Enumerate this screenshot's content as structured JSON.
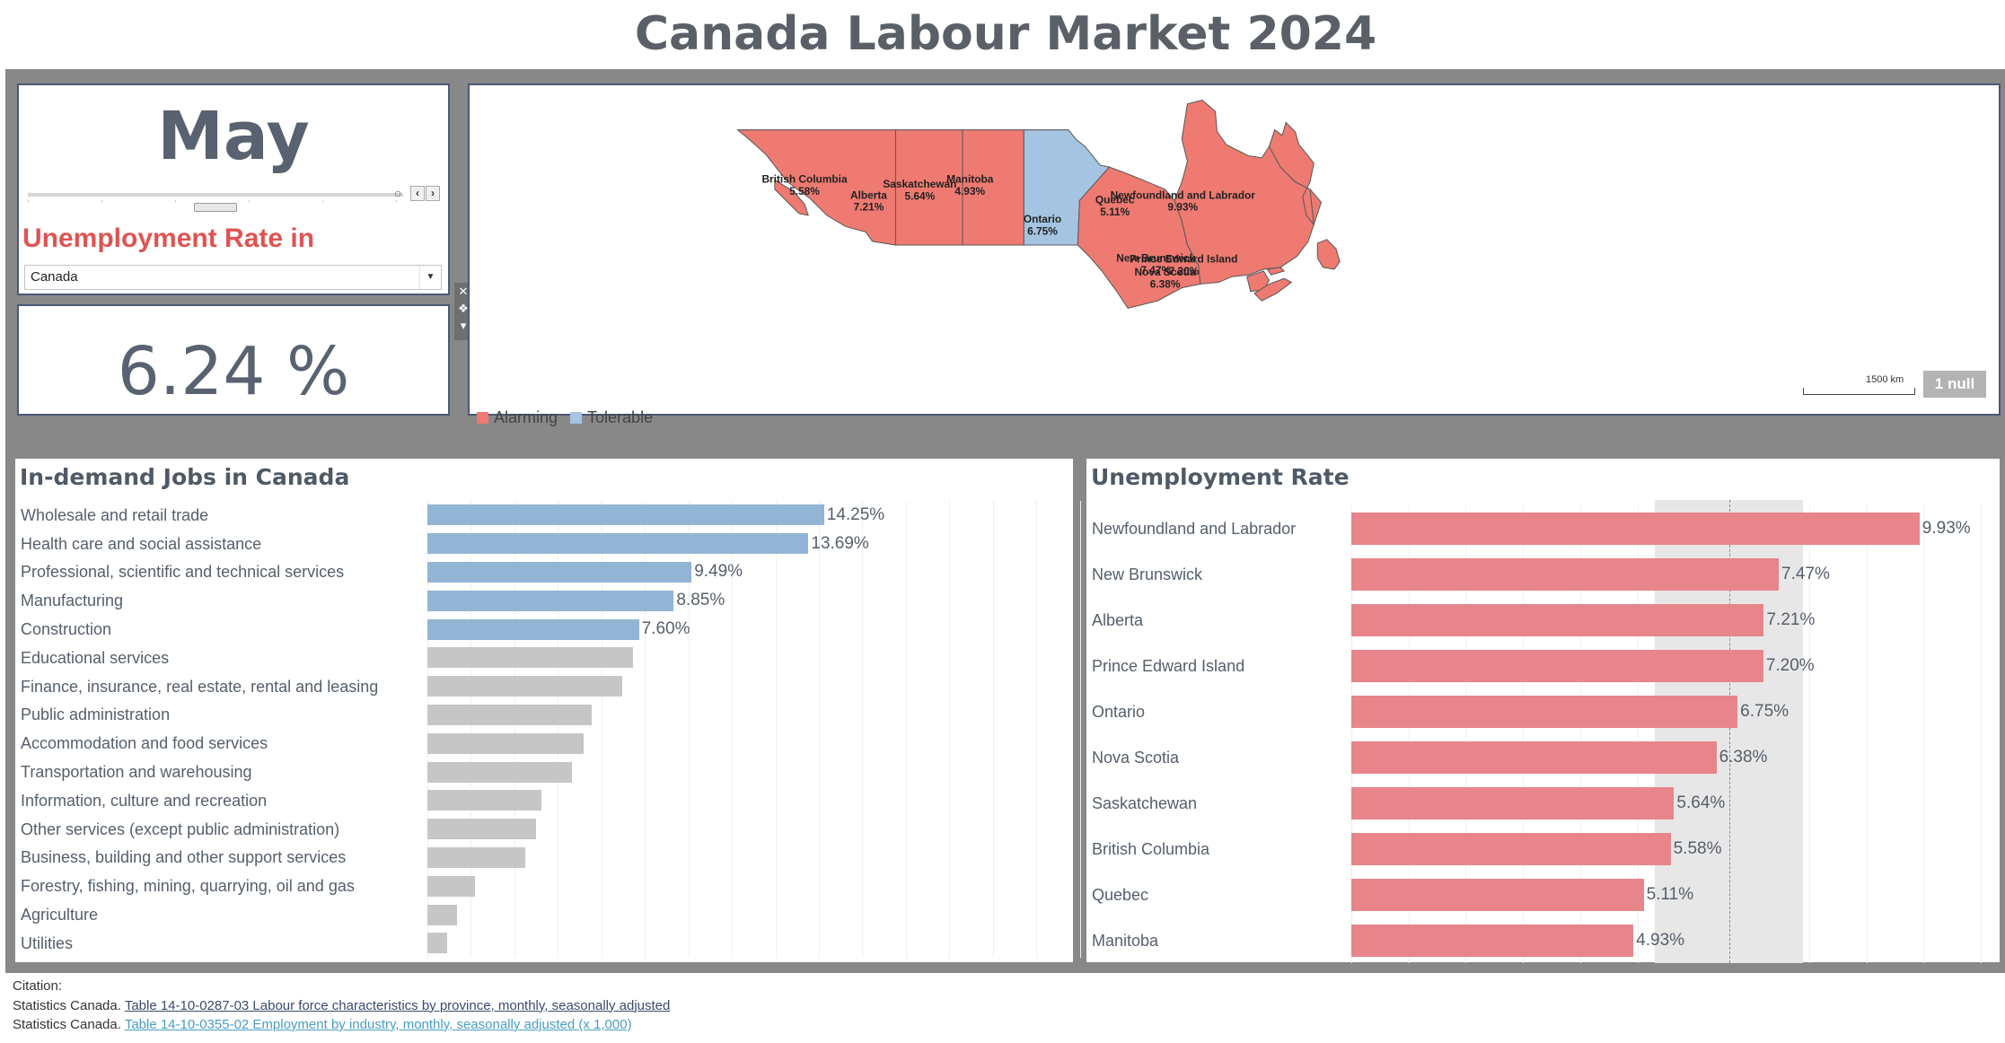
{
  "title": "Canada Labour Market 2024",
  "month": {
    "value": "May",
    "slider_ticks": 6,
    "position_fraction": 0.45
  },
  "selector": {
    "label": "Unemployment Rate in",
    "selected": "Canada"
  },
  "headline_rate": {
    "value": "6.24 %"
  },
  "map": {
    "legend": [
      {
        "label": "Alarming",
        "color": "#ee7a71"
      },
      {
        "label": "Tolerable",
        "color": "#a4c4e1"
      }
    ],
    "scale_label": "1500 km",
    "null_badge": "1 null",
    "provinces": [
      {
        "name": "British Columbia",
        "rate": "5.58%",
        "status": "Alarming"
      },
      {
        "name": "Alberta",
        "rate": "7.21%",
        "status": "Alarming"
      },
      {
        "name": "Saskatchewan",
        "rate": "5.64%",
        "status": "Alarming"
      },
      {
        "name": "Manitoba",
        "rate": "4.93%",
        "status": "Tolerable"
      },
      {
        "name": "Ontario",
        "rate": "6.75%",
        "status": "Alarming"
      },
      {
        "name": "Quebec",
        "rate": "5.11%",
        "status": "Alarming"
      },
      {
        "name": "Newfoundland and Labrador",
        "rate": "9.93%",
        "status": "Alarming"
      },
      {
        "name": "New Brunswick",
        "rate": "7.47%",
        "status": "Alarming"
      },
      {
        "name": "Prince Edward Island",
        "rate": "7.20%",
        "status": "Alarming"
      },
      {
        "name": "Nova Scotia",
        "rate": "6.38%",
        "status": "Alarming"
      }
    ]
  },
  "chart_data": [
    {
      "type": "bar",
      "orientation": "horizontal",
      "title": "In-demand Jobs in Canada",
      "unit": "%",
      "xlim": [
        0,
        25
      ],
      "grid": true,
      "highlight_color": "#93b5d5",
      "base_color": "#c6c6c6",
      "categories": [
        "Wholesale and retail trade",
        "Health care and social assistance",
        "Professional, scientific and technical services",
        "Manufacturing",
        "Construction",
        "Educational services",
        "Finance, insurance, real estate, rental and leasing",
        "Public administration",
        "Accommodation and food services",
        "Transportation and warehousing",
        "Information, culture and recreation",
        "Other services (except public administration)",
        "Business, building and other support services",
        "Forestry, fishing, mining, quarrying, oil and gas",
        "Agriculture",
        "Utilities"
      ],
      "values": [
        14.25,
        13.69,
        9.49,
        8.85,
        7.6,
        7.4,
        7.0,
        5.9,
        5.6,
        5.2,
        4.1,
        3.9,
        3.5,
        1.7,
        1.06,
        0.72
      ],
      "value_labels": [
        "14.25%",
        "13.69%",
        "9.49%",
        "8.85%",
        "7.60%",
        "",
        "",
        "",
        "",
        "",
        "",
        "",
        "",
        "",
        "",
        ""
      ],
      "highlighted": [
        true,
        true,
        true,
        true,
        true,
        false,
        false,
        false,
        false,
        false,
        false,
        false,
        false,
        false,
        false,
        false
      ]
    },
    {
      "type": "bar",
      "orientation": "horizontal",
      "title": "Unemployment Rate",
      "unit": "%",
      "xlim": [
        0,
        11
      ],
      "grid": true,
      "color": "#e8858a",
      "categories": [
        "Newfoundland and Labrador",
        "New Brunswick",
        "Alberta",
        "Prince Edward Island",
        "Ontario",
        "Nova Scotia",
        "Saskatchewan",
        "British Columbia",
        "Quebec",
        "Manitoba"
      ],
      "values": [
        9.93,
        7.47,
        7.21,
        7.2,
        6.75,
        6.38,
        5.64,
        5.58,
        5.11,
        4.93
      ],
      "value_labels": [
        "9.93%",
        "7.47%",
        "7.21%",
        "7.20%",
        "6.75%",
        "6.38%",
        "5.64%",
        "5.58%",
        "5.11%",
        "4.93%"
      ],
      "reference_band": [
        5.3,
        7.9
      ],
      "reference_line": 6.6
    }
  ],
  "citation": {
    "heading": "Citation:",
    "lines": [
      {
        "source": "Statistics Canada.",
        "link_text": "Table 14-10-0287-03  Labour force characteristics by province, monthly, seasonally adjusted"
      },
      {
        "source": "Statistics Canada.",
        "link_text": "Table 14-10-0355-02  Employment by industry, monthly, seasonally adjusted (x 1,000)"
      }
    ]
  }
}
